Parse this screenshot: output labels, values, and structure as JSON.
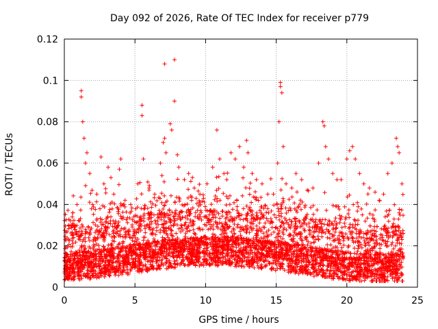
{
  "chart_data": {
    "type": "scatter",
    "title": "Day 092 of 2026, Rate Of TEC Index for receiver p779",
    "xlabel": "GPS time / hours",
    "ylabel": "ROTI / TECUs",
    "xlim": [
      0,
      25
    ],
    "ylim": [
      0,
      0.12
    ],
    "xticks": [
      {
        "value": 0,
        "label": "0"
      },
      {
        "value": 5,
        "label": "5"
      },
      {
        "value": 10,
        "label": "10"
      },
      {
        "value": 15,
        "label": "15"
      },
      {
        "value": 20,
        "label": "20"
      },
      {
        "value": 25,
        "label": "25"
      }
    ],
    "yticks": [
      {
        "value": 0,
        "label": "0"
      },
      {
        "value": 0.02,
        "label": "0.02"
      },
      {
        "value": 0.04,
        "label": "0.04"
      },
      {
        "value": 0.06,
        "label": "0.06"
      },
      {
        "value": 0.08,
        "label": "0.08"
      },
      {
        "value": 0.1,
        "label": "0.1"
      },
      {
        "value": 0.12,
        "label": "0.12"
      }
    ],
    "grid": true,
    "marker": "plus",
    "series": [
      {
        "name": "ROTI",
        "color": "#ff0000",
        "points": [
          [
            0.3,
            0.03
          ],
          [
            0.6,
            0.036
          ],
          [
            0.9,
            0.04
          ],
          [
            1.2,
            0.095
          ],
          [
            1.2,
            0.092
          ],
          [
            1.3,
            0.08
          ],
          [
            1.4,
            0.072
          ],
          [
            1.5,
            0.06
          ],
          [
            1.6,
            0.065
          ],
          [
            1.8,
            0.055
          ],
          [
            2.0,
            0.04
          ],
          [
            2.3,
            0.045
          ],
          [
            2.6,
            0.063
          ],
          [
            2.8,
            0.05
          ],
          [
            3.1,
            0.058
          ],
          [
            3.3,
            0.053
          ],
          [
            3.5,
            0.045
          ],
          [
            3.9,
            0.057
          ],
          [
            4.0,
            0.062
          ],
          [
            4.3,
            0.042
          ],
          [
            4.7,
            0.04
          ],
          [
            5.2,
            0.05
          ],
          [
            5.5,
            0.088
          ],
          [
            5.5,
            0.083
          ],
          [
            5.6,
            0.062
          ],
          [
            6.0,
            0.048
          ],
          [
            6.4,
            0.045
          ],
          [
            6.8,
            0.06
          ],
          [
            7.0,
            0.07
          ],
          [
            7.1,
            0.108
          ],
          [
            7.1,
            0.072
          ],
          [
            7.2,
            0.065
          ],
          [
            7.5,
            0.079
          ],
          [
            7.6,
            0.076
          ],
          [
            7.8,
            0.11
          ],
          [
            7.8,
            0.09
          ],
          [
            8.0,
            0.064
          ],
          [
            8.1,
            0.058
          ],
          [
            8.5,
            0.052
          ],
          [
            8.8,
            0.055
          ],
          [
            9.2,
            0.048
          ],
          [
            9.6,
            0.045
          ],
          [
            10.1,
            0.05
          ],
          [
            10.5,
            0.058
          ],
          [
            10.8,
            0.076
          ],
          [
            11.0,
            0.062
          ],
          [
            11.3,
            0.055
          ],
          [
            11.5,
            0.052
          ],
          [
            11.8,
            0.065
          ],
          [
            12.1,
            0.062
          ],
          [
            12.4,
            0.068
          ],
          [
            12.7,
            0.058
          ],
          [
            12.9,
            0.071
          ],
          [
            13.0,
            0.065
          ],
          [
            13.3,
            0.055
          ],
          [
            13.6,
            0.052
          ],
          [
            14.0,
            0.05
          ],
          [
            14.4,
            0.045
          ],
          [
            14.8,
            0.045
          ],
          [
            15.1,
            0.06
          ],
          [
            15.2,
            0.08
          ],
          [
            15.3,
            0.099
          ],
          [
            15.3,
            0.097
          ],
          [
            15.4,
            0.094
          ],
          [
            15.5,
            0.068
          ],
          [
            15.7,
            0.05
          ],
          [
            16.1,
            0.048
          ],
          [
            16.4,
            0.055
          ],
          [
            16.8,
            0.052
          ],
          [
            17.2,
            0.047
          ],
          [
            17.6,
            0.048
          ],
          [
            18.0,
            0.06
          ],
          [
            18.3,
            0.08
          ],
          [
            18.4,
            0.078
          ],
          [
            18.5,
            0.068
          ],
          [
            18.7,
            0.062
          ],
          [
            19.0,
            0.055
          ],
          [
            19.3,
            0.052
          ],
          [
            19.6,
            0.052
          ],
          [
            20.0,
            0.062
          ],
          [
            20.2,
            0.066
          ],
          [
            20.4,
            0.068
          ],
          [
            20.6,
            0.062
          ],
          [
            20.9,
            0.055
          ],
          [
            21.2,
            0.05
          ],
          [
            21.6,
            0.048
          ],
          [
            22.0,
            0.046
          ],
          [
            22.3,
            0.042
          ],
          [
            22.6,
            0.045
          ],
          [
            22.9,
            0.055
          ],
          [
            23.2,
            0.06
          ],
          [
            23.5,
            0.072
          ],
          [
            23.6,
            0.068
          ],
          [
            23.7,
            0.065
          ],
          [
            23.9,
            0.05
          ]
        ],
        "dense_band": {
          "x_range": [
            0,
            24
          ],
          "typical_range": [
            0.005,
            0.035
          ],
          "median": 0.016
        }
      }
    ]
  }
}
